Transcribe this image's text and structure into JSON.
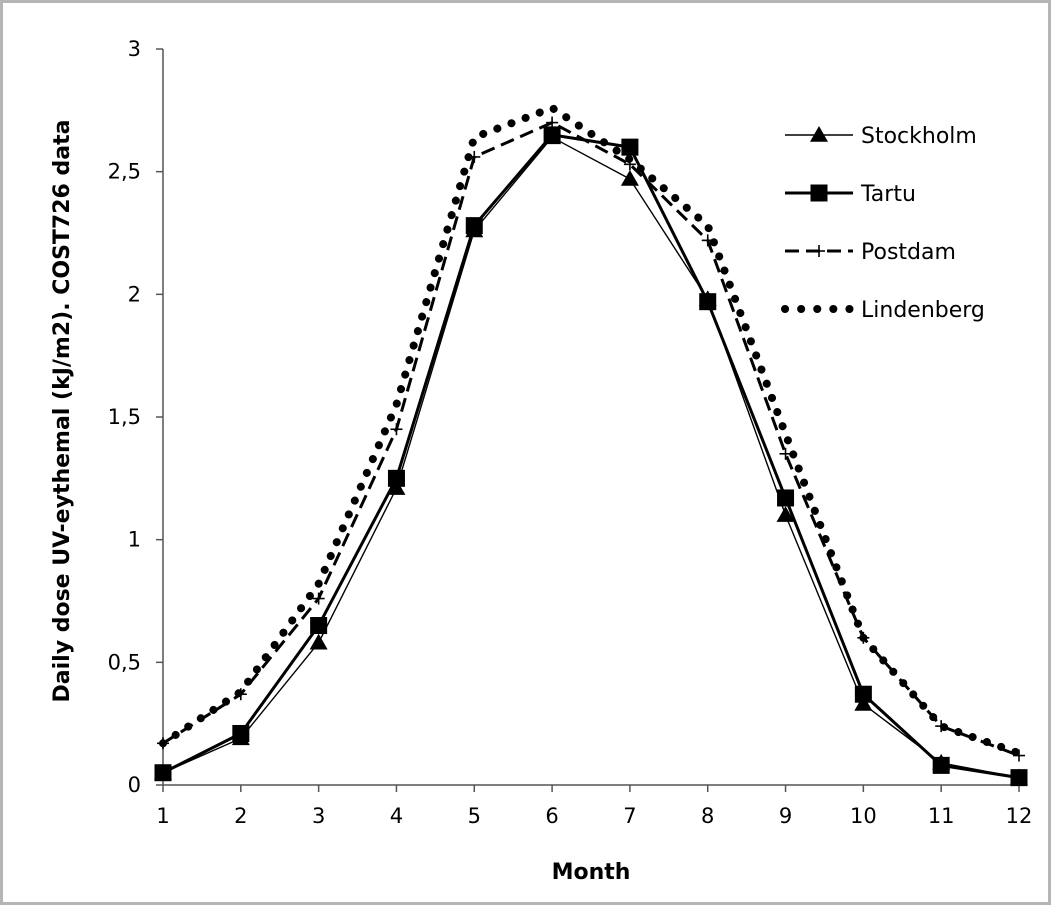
{
  "chart_data": {
    "type": "line",
    "title": "",
    "xlabel": "Month",
    "ylabel": "Daily dose UV-eythemal (kJ/m2). COST726  data",
    "x": [
      1,
      2,
      3,
      4,
      5,
      6,
      7,
      8,
      9,
      10,
      11,
      12
    ],
    "xlim": [
      1,
      12
    ],
    "ylim": [
      0,
      3
    ],
    "yticks": [
      0,
      0.5,
      1,
      1.5,
      2,
      2.5,
      3
    ],
    "ytick_labels": [
      "0",
      "0,5",
      "1",
      "1,5",
      "2",
      "2,5",
      "3"
    ],
    "xtick_labels": [
      "1",
      "2",
      "3",
      "4",
      "5",
      "6",
      "7",
      "8",
      "9",
      "10",
      "11",
      "12"
    ],
    "grid": false,
    "legend_position": "top-right",
    "series": [
      {
        "name": "Stockholm",
        "marker": "triangle",
        "line": "thin",
        "values": [
          0.05,
          0.19,
          0.58,
          1.21,
          2.26,
          2.64,
          2.47,
          1.98,
          1.1,
          0.33,
          0.09,
          0.03
        ]
      },
      {
        "name": "Tartu",
        "marker": "square",
        "line": "thick",
        "values": [
          0.05,
          0.21,
          0.65,
          1.25,
          2.28,
          2.65,
          2.6,
          1.97,
          1.17,
          0.37,
          0.08,
          0.03
        ]
      },
      {
        "name": "Postdam",
        "marker": "plus",
        "line": "dashed",
        "values": [
          0.17,
          0.37,
          0.76,
          1.45,
          2.56,
          2.7,
          2.53,
          2.22,
          1.35,
          0.6,
          0.24,
          0.12
        ]
      },
      {
        "name": "Lindenberg",
        "marker": "none",
        "line": "dotted",
        "values": [
          0.17,
          0.38,
          0.82,
          1.55,
          2.64,
          2.76,
          2.55,
          2.28,
          1.43,
          0.6,
          0.24,
          0.13
        ]
      }
    ]
  }
}
